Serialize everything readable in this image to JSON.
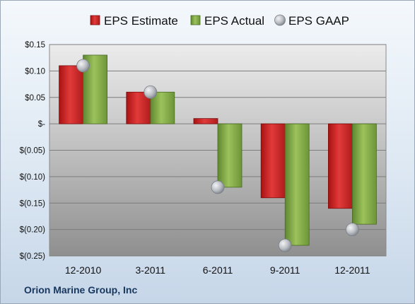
{
  "company": "Orion Marine Group, Inc",
  "colors": {
    "estimate": "#d42a2a",
    "actual": "#87ad4a",
    "gaap": "#b8bcc2"
  },
  "chart_data": {
    "type": "bar",
    "categories": [
      "12-2010",
      "3-2011",
      "6-2011",
      "9-2011",
      "12-2011"
    ],
    "series": [
      {
        "name": "EPS Estimate",
        "kind": "bar",
        "values": [
          0.11,
          0.06,
          0.01,
          -0.14,
          -0.16
        ]
      },
      {
        "name": "EPS Actual",
        "kind": "bar",
        "values": [
          0.13,
          0.06,
          -0.12,
          -0.23,
          -0.19
        ]
      },
      {
        "name": "EPS GAAP",
        "kind": "marker",
        "values": [
          0.11,
          0.06,
          -0.12,
          -0.23,
          -0.2
        ]
      }
    ],
    "y_ticks": [
      {
        "value": 0.15,
        "label": "$0.15"
      },
      {
        "value": 0.1,
        "label": "$0.10"
      },
      {
        "value": 0.05,
        "label": "$0.05"
      },
      {
        "value": 0,
        "label": "$-"
      },
      {
        "value": -0.05,
        "label": "$(0.05)"
      },
      {
        "value": -0.1,
        "label": "$(0.10)"
      },
      {
        "value": -0.15,
        "label": "$(0.15)"
      },
      {
        "value": -0.2,
        "label": "$(0.20)"
      },
      {
        "value": -0.25,
        "label": "$(0.25)"
      }
    ],
    "ylim": [
      -0.25,
      0.15
    ],
    "grid": true,
    "legend_position": "top"
  }
}
